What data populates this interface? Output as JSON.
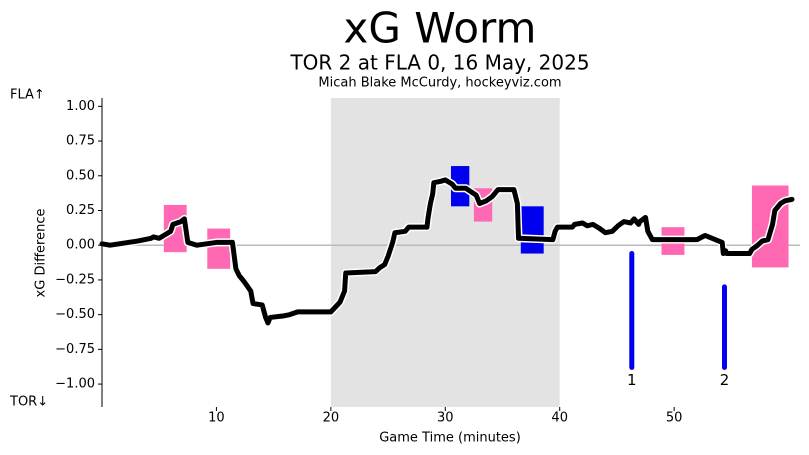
{
  "chart_data": {
    "type": "line",
    "title": "xG Worm",
    "subtitle": "TOR 2 at FLA 0, 16 May, 2025",
    "attribution": "Micah Blake McCurdy, hockeyviz.com",
    "top_label": "FLA↑",
    "bottom_label": "TOR↓",
    "x_label": "Game Time (minutes)",
    "y_label": "xG Difference",
    "xlim": [
      0,
      61
    ],
    "ylim": [
      -1.165,
      1.06
    ],
    "xticks": [
      10,
      20,
      30,
      40,
      50
    ],
    "yticks": [
      {
        "value": 1,
        "label": "1.00"
      },
      {
        "value": 0.75,
        "label": "0.75"
      },
      {
        "value": 0.5,
        "label": "0.50"
      },
      {
        "value": 0.25,
        "label": "0.25"
      },
      {
        "value": 0,
        "label": "0.00"
      },
      {
        "value": -0.25,
        "label": "−0.25"
      },
      {
        "value": -0.5,
        "label": "−0.50"
      },
      {
        "value": -0.75,
        "label": "−0.75"
      },
      {
        "value": -1,
        "label": "−1.00"
      }
    ],
    "shade": [
      20,
      40
    ],
    "shade_color": "#e3e3e3",
    "hline": 0,
    "hline_color": "#bbbbbb",
    "color": "#000000",
    "x": [
      0,
      0.7,
      3.1,
      4.3,
      4.5,
      5.0,
      5.6,
      6.0,
      6.2,
      6.9,
      7.2,
      7.5,
      8.3,
      10.0,
      11.4,
      11.7,
      12.0,
      12.4,
      13.0,
      13.2,
      14.0,
      14.3,
      14.5,
      14.7,
      15.8,
      16.4,
      17.1,
      20.0,
      20.8,
      21.0,
      21.2,
      21.3,
      23.9,
      24.3,
      24.7,
      25.0,
      25.2,
      25.4,
      25.6,
      26.5,
      26.8,
      28.4,
      28.5,
      28.7,
      28.9,
      29.0,
      29.6,
      30.0,
      30.6,
      30.9,
      31.8,
      32.7,
      33.0,
      33.6,
      34.1,
      34.6,
      36.0,
      36.3,
      36.4,
      39.4,
      39.6,
      39.8,
      41.1,
      41.3,
      42.0,
      42.4,
      42.9,
      43.5,
      44.0,
      44.6,
      45.1,
      45.6,
      46.2,
      46.5,
      46.9,
      47.0,
      47.5,
      47.7,
      48.1,
      52.0,
      52.7,
      54.2,
      54.3,
      54.5,
      54.6,
      56.6,
      56.8,
      57.3,
      57.7,
      58.2,
      58.6,
      58.8,
      59.3,
      59.7,
      60.3
    ],
    "values": [
      0.01,
      0.0,
      0.03,
      0.05,
      0.06,
      0.05,
      0.08,
      0.1,
      0.15,
      0.17,
      0.19,
      0.02,
      0.0,
      0.02,
      0.02,
      -0.17,
      -0.22,
      -0.26,
      -0.33,
      -0.42,
      -0.43,
      -0.52,
      -0.56,
      -0.52,
      -0.51,
      -0.5,
      -0.48,
      -0.48,
      -0.41,
      -0.37,
      -0.33,
      -0.2,
      -0.19,
      -0.16,
      -0.14,
      -0.08,
      -0.03,
      0.02,
      0.09,
      0.1,
      0.13,
      0.13,
      0.2,
      0.3,
      0.37,
      0.45,
      0.46,
      0.47,
      0.44,
      0.41,
      0.41,
      0.36,
      0.3,
      0.32,
      0.35,
      0.4,
      0.4,
      0.3,
      0.05,
      0.04,
      0.1,
      0.13,
      0.13,
      0.15,
      0.16,
      0.14,
      0.15,
      0.12,
      0.09,
      0.1,
      0.14,
      0.17,
      0.16,
      0.19,
      0.15,
      0.17,
      0.2,
      0.1,
      0.04,
      0.04,
      0.07,
      0.02,
      -0.06,
      -0.04,
      -0.06,
      -0.06,
      -0.03,
      0.0,
      0.03,
      0.04,
      0.15,
      0.25,
      0.3,
      0.32,
      0.33
    ],
    "penalties": [
      {
        "color": "#ff69b4",
        "x": [
          5.4,
          7.4
        ],
        "y": [
          -0.05,
          0.29
        ]
      },
      {
        "color": "#ff69b4",
        "x": [
          9.2,
          11.2
        ],
        "y": [
          -0.17,
          0.12
        ]
      },
      {
        "color": "#0000ee",
        "x": [
          30.5,
          32.1
        ],
        "y": [
          0.28,
          0.57
        ]
      },
      {
        "color": "#ff69b4",
        "x": [
          32.5,
          34.1
        ],
        "y": [
          0.17,
          0.41
        ]
      },
      {
        "color": "#0000ee",
        "x": [
          36.6,
          38.6
        ],
        "y": [
          -0.06,
          0.28
        ]
      },
      {
        "color": "#ff69b4",
        "x": [
          48.9,
          50.9
        ],
        "y": [
          -0.07,
          0.13
        ]
      },
      {
        "color": "#ff69b4",
        "x": [
          56.8,
          60.0
        ],
        "y": [
          -0.16,
          0.43
        ]
      }
    ],
    "goal_color": "#0000ee",
    "goals": [
      {
        "label": "1",
        "x": 46.3,
        "y": [
          -0.88,
          -0.06
        ]
      },
      {
        "label": "2",
        "x": 54.4,
        "y": [
          -0.88,
          -0.3
        ]
      }
    ]
  }
}
